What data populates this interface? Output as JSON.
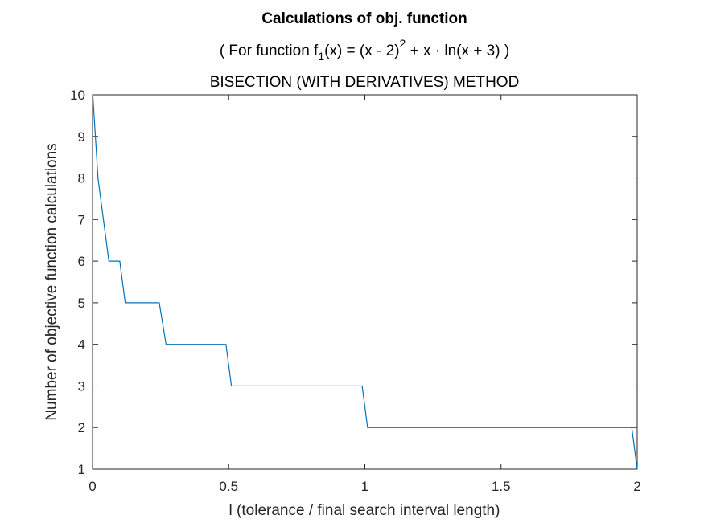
{
  "chart_data": {
    "type": "line",
    "title": "Calculations of obj. function",
    "subtitle": {
      "prefix": "( For function f",
      "subscript": "1",
      "middle": "(x) = (x - 2)",
      "superscript": "2",
      "suffix": " + x · ln(x + 3) )"
    },
    "method": "BISECTION (WITH DERIVATIVES) METHOD",
    "xlabel": "l (tolerance / final search interval length)",
    "ylabel": "Number of objective function calculations",
    "xlim": [
      0,
      2
    ],
    "ylim": [
      1,
      10
    ],
    "x_ticks": [
      0,
      0.5,
      1,
      1.5,
      2
    ],
    "x_tick_labels": [
      "0",
      "0.5",
      "1",
      "1.5",
      "2"
    ],
    "y_ticks": [
      1,
      2,
      3,
      4,
      5,
      6,
      7,
      8,
      9,
      10
    ],
    "y_tick_labels": [
      "1",
      "2",
      "3",
      "4",
      "5",
      "6",
      "7",
      "8",
      "9",
      "10"
    ],
    "grid": false,
    "series": [
      {
        "color": "#0072BD",
        "x": [
          0.001,
          0.02,
          0.06,
          0.1,
          0.12,
          0.245,
          0.27,
          0.49,
          0.51,
          0.99,
          1.01,
          1.98,
          2.0
        ],
        "y": [
          10,
          8,
          6,
          6,
          5,
          5,
          4,
          4,
          3,
          3,
          2,
          2,
          1
        ]
      }
    ]
  }
}
